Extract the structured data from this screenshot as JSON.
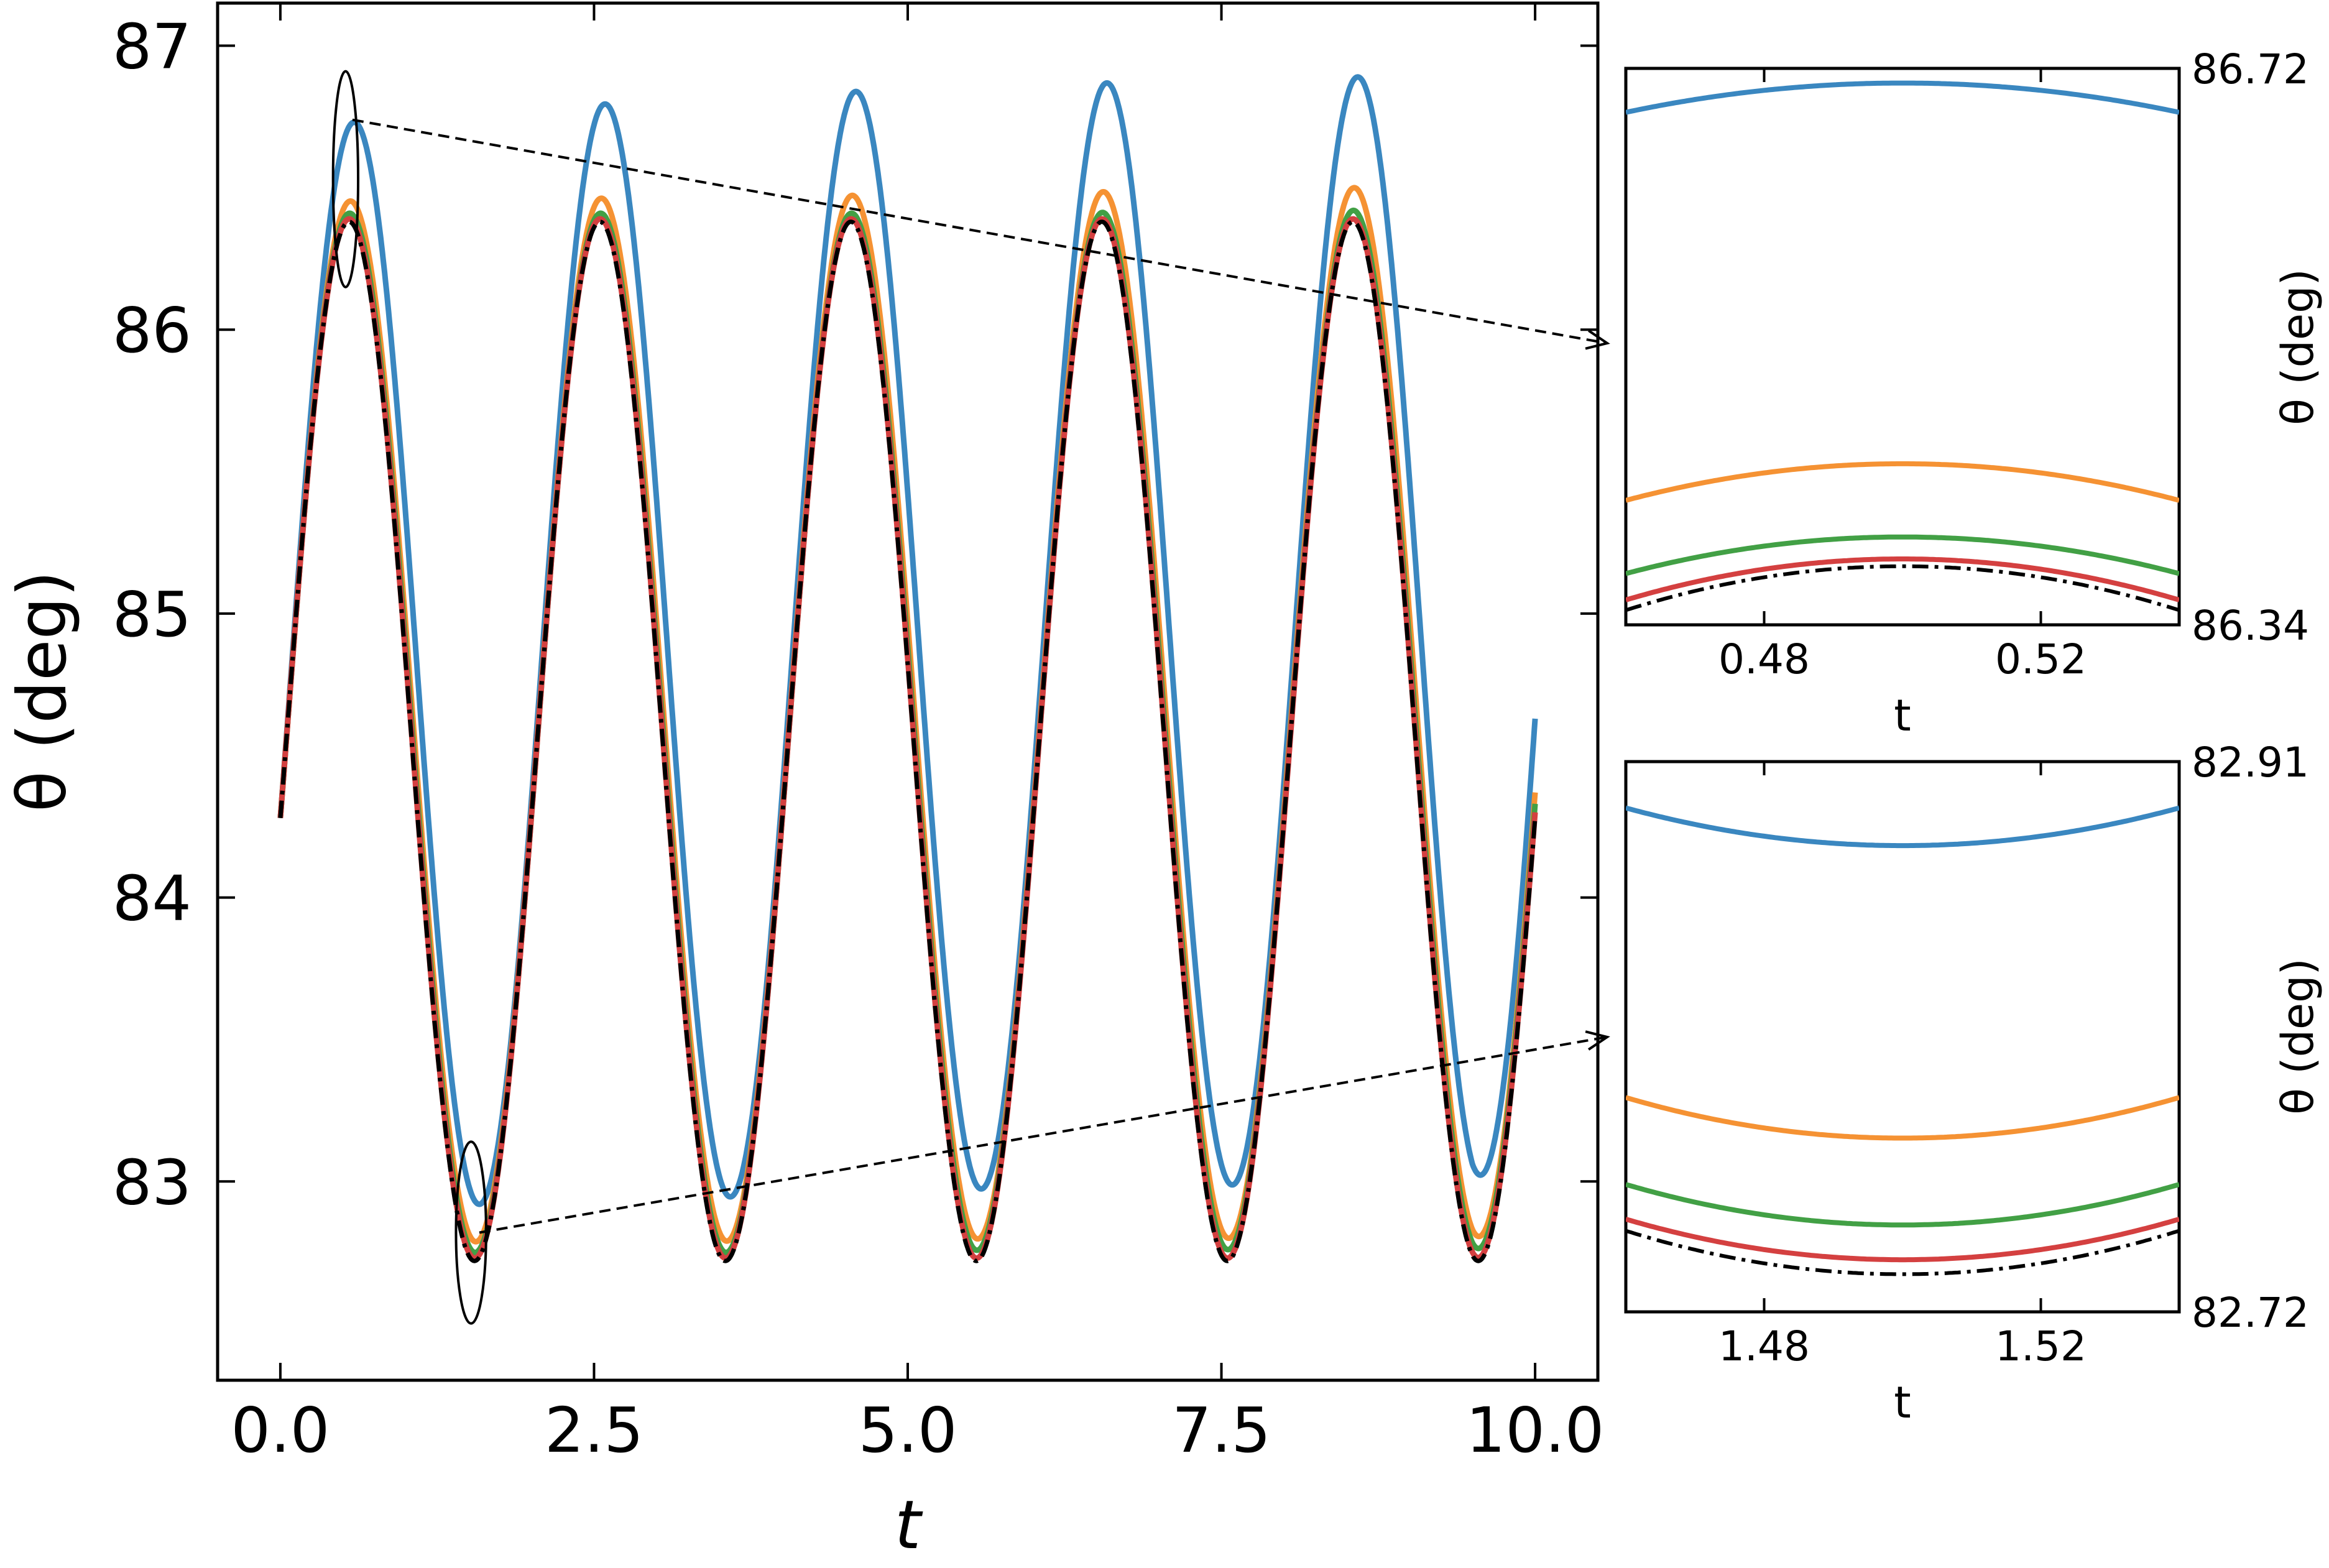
{
  "colors": {
    "series_1": "#3a87c0",
    "series_2": "#f59233",
    "series_3": "#42a045",
    "series_4": "#d44040",
    "reference": "#000000"
  },
  "chart_data": [
    {
      "type": "line",
      "xlabel": "t",
      "ylabel": "θ (deg)",
      "xlim": [
        -0.5,
        10.5
      ],
      "ylim": [
        82.3,
        87.15
      ],
      "xticks": [
        "0.0",
        "2.5",
        "5.0",
        "7.5",
        "10.0"
      ],
      "yticks": [
        "83",
        "84",
        "85",
        "86",
        "87"
      ],
      "grid": false,
      "t_end": 10.0,
      "period": 2.0,
      "series": [
        {
          "color_key": "series_1",
          "style": "solid",
          "start": 84.28,
          "maxima": [
            86.71,
            86.78,
            86.83,
            86.86,
            86.89
          ],
          "minima": [
            82.88,
            82.93,
            82.95,
            82.98,
            82.99
          ],
          "end": 84.63
        },
        {
          "color_key": "series_2",
          "style": "solid",
          "start": 84.28,
          "maxima": [
            86.45,
            86.46,
            86.47,
            86.48,
            86.5
          ],
          "minima": [
            82.78,
            82.79,
            82.79,
            82.8,
            82.8
          ],
          "end": 84.37
        },
        {
          "color_key": "series_3",
          "style": "solid",
          "start": 84.28,
          "maxima": [
            86.41,
            86.41,
            86.41,
            86.41,
            86.42
          ],
          "minima": [
            82.75,
            82.75,
            82.75,
            82.76,
            82.76
          ],
          "end": 84.33
        },
        {
          "color_key": "series_4",
          "style": "solid",
          "start": 84.28,
          "maxima": [
            86.39,
            86.39,
            86.39,
            86.39,
            86.39
          ],
          "minima": [
            82.73,
            82.73,
            82.73,
            82.73,
            82.73
          ],
          "end": 84.3
        },
        {
          "color_key": "reference",
          "style": "dashdot",
          "start": 84.28,
          "maxima": [
            86.38,
            86.38,
            86.38,
            86.38,
            86.38
          ],
          "minima": [
            82.72,
            82.72,
            82.72,
            82.72,
            82.72
          ],
          "end": 84.28
        }
      ],
      "zoom_markers": [
        {
          "center": [
            0.52,
            86.53
          ],
          "half_width": 0.1,
          "half_height": 0.38,
          "target_inset": 0
        },
        {
          "center": [
            1.52,
            82.82
          ],
          "half_width": 0.12,
          "half_height": 0.32,
          "target_inset": 1
        }
      ]
    },
    {
      "type": "line",
      "xlabel": "t",
      "ylabel": "θ (deg)",
      "xlim": [
        0.46,
        0.54
      ],
      "ylim": [
        86.34,
        86.72
      ],
      "xticks": [
        "0.48",
        "0.52"
      ],
      "yticks": [
        "86.34",
        "86.72"
      ],
      "grid": false,
      "series": [
        {
          "color_key": "series_1",
          "style": "solid",
          "peak_t": 0.5,
          "peak": 86.71,
          "edge": 86.69
        },
        {
          "color_key": "series_2",
          "style": "solid",
          "peak_t": 0.5,
          "peak": 86.45,
          "edge": 86.425
        },
        {
          "color_key": "series_3",
          "style": "solid",
          "peak_t": 0.5,
          "peak": 86.4,
          "edge": 86.375
        },
        {
          "color_key": "series_4",
          "style": "solid",
          "peak_t": 0.5,
          "peak": 86.385,
          "edge": 86.357
        },
        {
          "color_key": "reference",
          "style": "dashdot",
          "peak_t": 0.5,
          "peak": 86.38,
          "edge": 86.35
        }
      ]
    },
    {
      "type": "line",
      "xlabel": "t",
      "ylabel": "θ (deg)",
      "xlim": [
        1.46,
        1.54
      ],
      "ylim": [
        82.72,
        82.91
      ],
      "xticks": [
        "1.48",
        "1.52"
      ],
      "yticks": [
        "82.91",
        "82.72"
      ],
      "grid": false,
      "series": [
        {
          "color_key": "series_1",
          "style": "solid",
          "peak_t": 1.5,
          "peak": 82.881,
          "edge": 82.894
        },
        {
          "color_key": "series_2",
          "style": "solid",
          "peak_t": 1.5,
          "peak": 82.78,
          "edge": 82.794
        },
        {
          "color_key": "series_3",
          "style": "solid",
          "peak_t": 1.5,
          "peak": 82.75,
          "edge": 82.764
        },
        {
          "color_key": "series_4",
          "style": "solid",
          "peak_t": 1.5,
          "peak": 82.738,
          "edge": 82.752
        },
        {
          "color_key": "reference",
          "style": "dashdot",
          "peak_t": 1.5,
          "peak": 82.733,
          "edge": 82.748
        }
      ]
    }
  ]
}
